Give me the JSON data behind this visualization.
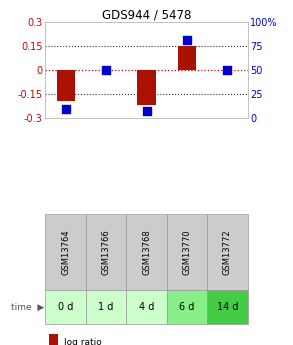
{
  "title": "GDS944 / 5478",
  "samples": [
    "GSM13764",
    "GSM13766",
    "GSM13768",
    "GSM13770",
    "GSM13772"
  ],
  "time_labels": [
    "0 d",
    "1 d",
    "4 d",
    "6 d",
    "14 d"
  ],
  "log_ratios": [
    -0.19,
    0.0,
    -0.215,
    0.155,
    0.0
  ],
  "percentile_ranks": [
    10,
    50,
    7,
    82,
    50
  ],
  "ylim": [
    -0.3,
    0.3
  ],
  "y2lim": [
    0,
    100
  ],
  "y_ticks": [
    -0.3,
    -0.15,
    0,
    0.15,
    0.3
  ],
  "y2_ticks": [
    0,
    25,
    50,
    75,
    100
  ],
  "hline_zero_color": "#cc0000",
  "hline_zero_style": "dotted",
  "hline_other_color": "#333333",
  "hline_other_style": "dotted",
  "bar_color": "#aa1100",
  "dot_color": "#0000cc",
  "sample_bg": "#cccccc",
  "time_colors": [
    "#ccffcc",
    "#ccffcc",
    "#ccffcc",
    "#88ee88",
    "#44cc44"
  ],
  "left_label_color": "#cc0000",
  "right_label_color": "#0000cc",
  "bar_width": 0.45,
  "dot_size": 28
}
